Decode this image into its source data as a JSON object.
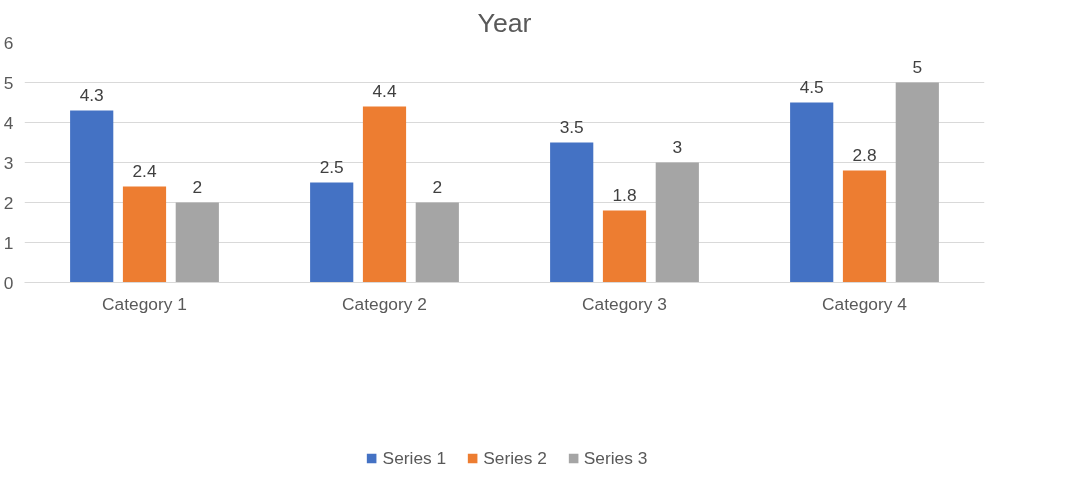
{
  "chart_data": {
    "type": "bar",
    "title": "Year",
    "categories": [
      "Category 1",
      "Category 2",
      "Category 3",
      "Category 4"
    ],
    "series": [
      {
        "name": "Series 1",
        "color": "#4472c4",
        "values": [
          4.3,
          2.5,
          3.5,
          4.5
        ]
      },
      {
        "name": "Series 2",
        "color": "#ed7d31",
        "values": [
          2.4,
          4.4,
          1.8,
          2.8
        ]
      },
      {
        "name": "Series 3",
        "color": "#a5a5a5",
        "values": [
          2,
          2,
          3,
          5
        ]
      }
    ],
    "ylim": [
      0,
      6
    ],
    "yticks": [
      0,
      1,
      2,
      3,
      4,
      5,
      6
    ],
    "grid": "y",
    "legend": "bottom",
    "data_labels": true
  }
}
